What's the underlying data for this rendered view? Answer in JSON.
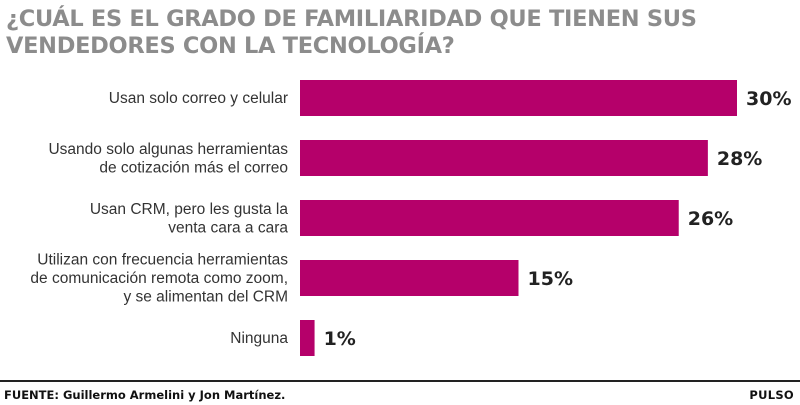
{
  "chart_data": {
    "type": "bar",
    "orientation": "horizontal",
    "title": "¿CUÁL ES EL GRADO DE FAMILIARIDAD QUE TIENEN SUS VENDEDORES CON LA TECNOLOGÍA?",
    "categories": [
      [
        "Usan solo correo y celular"
      ],
      [
        "Usando solo algunas herramientas",
        "de cotización más el correo"
      ],
      [
        "Usan CRM, pero les gusta la",
        "venta cara a cara"
      ],
      [
        "Utilizan con frecuencia herramientas",
        "de comunicación remota como zoom,",
        "y se alimentan del CRM"
      ],
      [
        "Ninguna"
      ]
    ],
    "values": [
      30,
      28,
      26,
      15,
      1
    ],
    "value_labels": [
      "30%",
      "28%",
      "26%",
      "15%",
      "1%"
    ],
    "unit": "%",
    "xlim": [
      0,
      30
    ],
    "grid": false,
    "legend": "none",
    "bar_color": "#b5006a"
  },
  "footer": {
    "source": "FUENTE: Guillermo Armelini y Jon Martínez.",
    "brand": "PULSO"
  }
}
